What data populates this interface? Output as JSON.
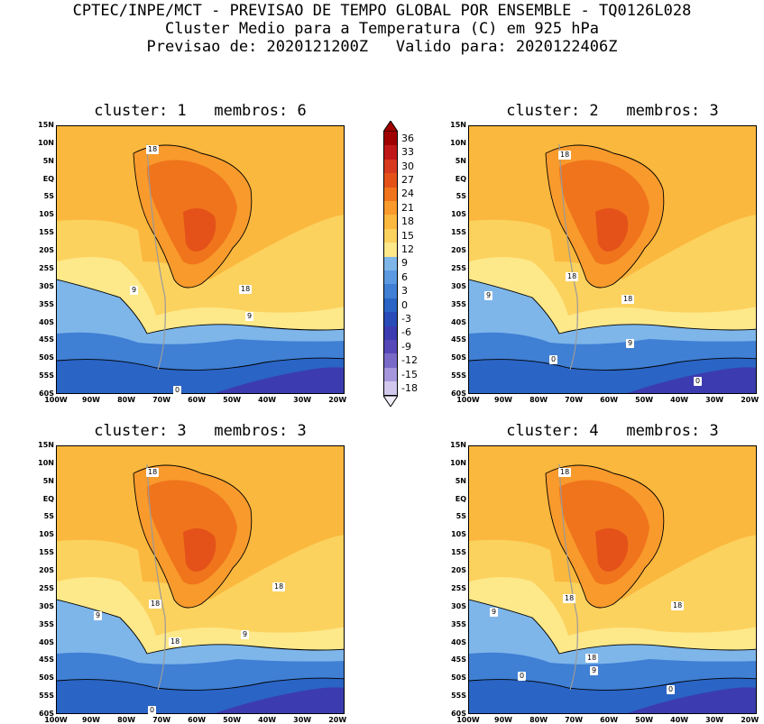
{
  "header": {
    "line1": "CPTEC/INPE/MCT - PREVISAO DE TEMPO GLOBAL POR ENSEMBLE - TQ0126L028",
    "line2": "Cluster Medio para a Temperatura (C) em 925 hPa",
    "line3": "Previsao de: 2020121200Z   Valido para: 2020122406Z"
  },
  "axes": {
    "y_ticks": [
      "15N",
      "10N",
      "5N",
      "EQ",
      "5S",
      "10S",
      "15S",
      "20S",
      "25S",
      "30S",
      "35S",
      "40S",
      "45S",
      "50S",
      "55S",
      "60S"
    ],
    "x_ticks": [
      "100W",
      "90W",
      "80W",
      "70W",
      "60W",
      "50W",
      "40W",
      "30W",
      "20W"
    ]
  },
  "legend": {
    "levels": [
      "36",
      "33",
      "30",
      "27",
      "24",
      "21",
      "18",
      "15",
      "12",
      "9",
      "6",
      "3",
      "0",
      "-3",
      "-6",
      "-9",
      "-12",
      "-15",
      "-18"
    ],
    "colors": [
      "#a00000",
      "#c01818",
      "#d83a20",
      "#e4521a",
      "#f0741c",
      "#f89a2c",
      "#fbb83e",
      "#fcd25e",
      "#fde88a",
      "#7eb6ea",
      "#5b9ae0",
      "#3f7fd4",
      "#2a64c4",
      "#2a4cb8",
      "#3c3cb0",
      "#5648b8",
      "#7a6ac8",
      "#a696dc",
      "#d2c8ee"
    ]
  },
  "panels": [
    {
      "title": "cluster: 1   membros: 6",
      "labels": [
        "18",
        "18",
        "9",
        "9",
        "0"
      ]
    },
    {
      "title": "cluster: 2   membros: 3",
      "labels": [
        "18",
        "18",
        "18",
        "9",
        "9",
        "0",
        "0"
      ]
    },
    {
      "title": "cluster: 3   membros: 3",
      "labels": [
        "18",
        "18",
        "18",
        "18",
        "9",
        "9",
        "0"
      ]
    },
    {
      "title": "cluster: 4   membros: 3",
      "labels": [
        "18",
        "18",
        "18",
        "18",
        "9",
        "9",
        "0",
        "0"
      ]
    }
  ]
}
